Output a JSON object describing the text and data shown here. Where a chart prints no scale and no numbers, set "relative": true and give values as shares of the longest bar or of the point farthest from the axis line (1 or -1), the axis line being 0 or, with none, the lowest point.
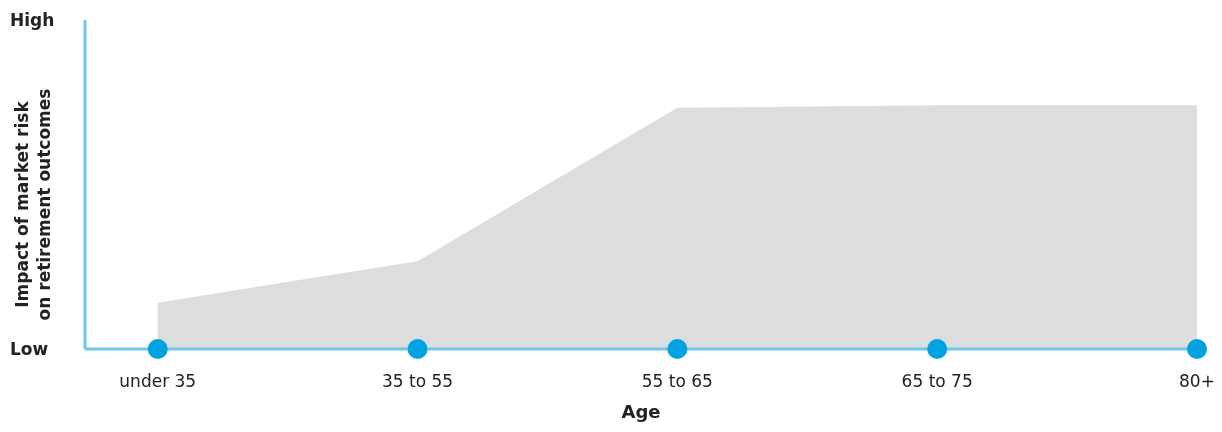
{
  "chart_data": {
    "type": "area",
    "xlabel": "Age",
    "ylabel": "Impact of market risk on retirement outcomes",
    "relative": true,
    "categories": [
      "under 35",
      "35 to 55",
      "55 to 65",
      "65 to 75",
      "80+"
    ],
    "series": [
      {
        "color": "#dcdddf",
        "values": [
          0.19,
          0.36,
          0.99,
          1,
          1
        ]
      }
    ],
    "annotations": [
      "High",
      "Low"
    ]
  }
}
